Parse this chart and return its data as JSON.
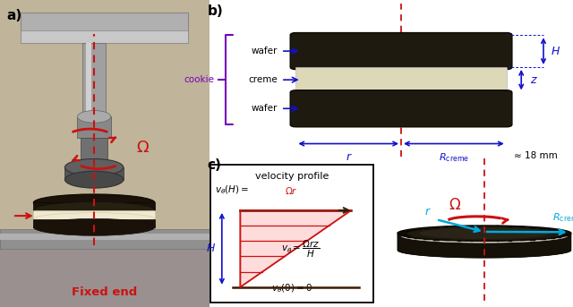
{
  "panel_a_label": "a)",
  "panel_b_label": "b)",
  "panel_c_label": "c)",
  "fixed_end_text": "Fixed end",
  "omega_symbol": "Ω",
  "wafer_label": "wafer",
  "creme_label": "creme",
  "cookie_label": "cookie",
  "r_creme_value": "≈ 18 mm",
  "z_label": "z",
  "r_label": "r",
  "H_label": "H",
  "velocity_title": "velocity profile",
  "bg_color": "#ffffff",
  "photo_bg_top": "#d0c8b8",
  "photo_bg_bot": "#b0a898",
  "arrow_blue": "#1111cc",
  "arrow_red": "#cc1111",
  "arrow_cyan": "#00aadd",
  "text_red": "#cc1111",
  "text_blue": "#1111cc",
  "bracket_purple": "#7700bb",
  "cookie_dark": "#1a1208",
  "creme_light": "#e8e0c0",
  "shaft_grey": "#787878",
  "plate_grey": "#909090"
}
